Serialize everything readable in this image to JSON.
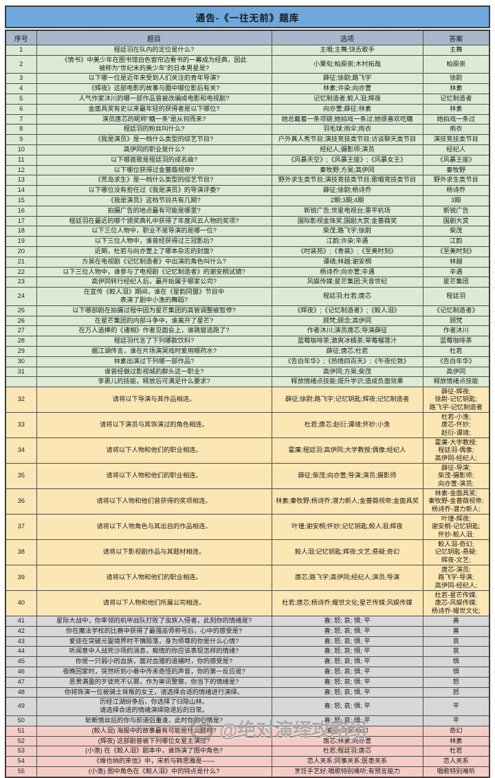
{
  "title": "通告-《一往无前》题库",
  "columns": [
    "序号",
    "题目",
    "选项",
    "答案"
  ],
  "colors": {
    "title_bg": "#6FA8DC",
    "header_bg": "#A9B7CB",
    "section_green": "#DCEBD4",
    "section_yellow": "#FBE6B4",
    "section_gray": "#D8D8D8",
    "section_red": "#F5CDC6"
  },
  "watermark": {
    "handle": "@绝对演绎攻略组",
    "stamp_text": "绝对演绎攻略组"
  },
  "rows": [
    {
      "no": "1",
      "sec": "green",
      "q": "程廷羽在队内的定位是什么?",
      "opts": "主唱;主舞;饶舌歌手",
      "ans": "主舞"
    },
    {
      "no": "2",
      "sec": "green",
      "q": "《情书》中美少年在图书馆白色窗帘边看书的一幕成为经典，因此\n被称为“世纪末的美少年”的日本男星是?",
      "opts": "小栗旬;柏原崇;木村拓哉",
      "ans": "柏原崇"
    },
    {
      "no": "3",
      "sec": "green",
      "q": "以下哪一位是近年来受到人们关注的青年导演?",
      "opts": "薛征;徐尉;路飞宇",
      "ans": "徐尉"
    },
    {
      "no": "4",
      "sec": "green",
      "q": "《辉夜》这部电影的故事与圈中哪位影后有关?",
      "opts": "林素;许染;向亦萱",
      "ans": "林素"
    },
    {
      "no": "5",
      "sec": "green",
      "q": "人气作家沐川的哪一部作品曾被改编成电影和电视剧?",
      "opts": "记忆制造者;鲛人泪;辉夜",
      "ans": "记忆制造者"
    },
    {
      "no": "6",
      "sec": "green",
      "q": "金面具奖有史以来最年轻的获得者是以下哪位?",
      "opts": "向亦萱;薛征;林素",
      "ans": "林素"
    },
    {
      "no": "7",
      "sec": "green",
      "q": "演员唐芯的昵称“糖一条”是从何而来?",
      "opts": "她总戴着一条项链;她拍戏一条过;她很喜欢吃糖",
      "ans": "她拍戏一条过"
    },
    {
      "no": "8",
      "sec": "green",
      "q": "程廷羽的粉丝叫什么?",
      "opts": "羽毛球;雨伞;雨衣",
      "ans": "雨衣"
    },
    {
      "no": "9",
      "sec": "green",
      "q": "《我是演员》是一档什么类型的综艺节目?",
      "opts": "户外真人秀节目;演技竞技类节目;访谈聊天类节目",
      "ans": "演技竞技类节目"
    },
    {
      "no": "10",
      "sec": "green",
      "q": "高伊同的职业是什么?",
      "opts": "经纪人;摄影师;演员",
      "ans": "经纪人"
    },
    {
      "no": "11",
      "sec": "green",
      "q": "以下哪首歌是程廷羽的成名曲?",
      "opts": "《风暴天空》;《风暴王座》;《风暴女王》",
      "ans": "《风暴王座》"
    },
    {
      "no": "12",
      "sec": "green",
      "q": "以下哪位获得过金蔷薇视帝?",
      "opts": "秦牧野;方昊;高伊同",
      "ans": "秦牧野"
    },
    {
      "no": "13",
      "sec": "green",
      "q": "《荒岛求生》是一档什么类型的综艺节目?",
      "opts": "野外求生类节目;演技竞技类节目;歌唱竞技类节目",
      "ans": "野外求生类节目"
    },
    {
      "no": "14",
      "sec": "green",
      "q": "以下哪位没有担任过《我是演员》的导演评委?",
      "opts": "薛征;徐尉;杨诗乔",
      "ans": "杨诗乔"
    },
    {
      "no": "15",
      "sec": "green",
      "q": "《我是演员》这档节目共有几期?",
      "opts": "2期;3期;4期",
      "ans": "3期"
    },
    {
      "no": "16",
      "sec": "green",
      "q": "拍摄广告的地点最有可能是哪里?",
      "opts": "新锐广告;世星电视台;景平机场",
      "ans": "新锐广告"
    },
    {
      "no": "17",
      "sec": "green",
      "q": "程廷羽在最近的哪个颁奖典礼中获得了年度风云人物的奖项?",
      "opts": "国际影视金珠奖;国剧大赏;金蔷薇奖",
      "ans": "国剧大赏"
    },
    {
      "no": "18",
      "sec": "green",
      "q": "以下三位人物中，职业不是导演的是哪一位?",
      "opts": "柴茂;路飞宇;徐尉",
      "ans": "柴茂"
    },
    {
      "no": "19",
      "sec": "green",
      "q": "以下三位人物中，谁曾经获得过三冠影后?",
      "opts": "江韵;许染;辛遇",
      "ans": "江韵"
    },
    {
      "no": "20",
      "sec": "green",
      "q": "近期，杜若与向亦萱上了哪本杂志的封面?",
      "opts": "《时装苑》;《青装》;《至美时刻》",
      "ans": "《至美时刻》"
    },
    {
      "no": "21",
      "sec": "green",
      "q": "方昊在电视剧《记忆制造者》中出演的角色叫什么?",
      "opts": "谭靖;林越;谢安桐",
      "ans": "林越"
    },
    {
      "no": "22",
      "sec": "green",
      "q": "以下三位人物中，谁参与了电视剧《记忆制造者》的谢安桐试镜?",
      "opts": "杨诗乔;向亦萱;辛遇",
      "ans": "辛遇"
    },
    {
      "no": "23",
      "sec": "green",
      "q": "高伊同转行经纪人后，最开始属于哪家公司?",
      "opts": "风娱传媒;星芒集团;天音世纪",
      "ans": "星芒集团"
    },
    {
      "no": "24",
      "sec": "green",
      "q": "在宣传《鲛人泪》期间，谁在《星韵同盟》节目中\n表演了剧中小渔的舞蹈?",
      "opts": "程廷羽;杜若;唐芯",
      "ans": "程廷羽"
    },
    {
      "no": "25",
      "sec": "green",
      "q": "以下哪部剧在拍摄过程中因为星芒集团的高管调整被暂停?",
      "opts": "《辉夜》;《记忆制造者》;《鲛人泪》",
      "ans": "《记忆制造者》"
    },
    {
      "no": "26",
      "sec": "green",
      "q": "在星芒集团的内部斗争中，谁离开了星芒?",
      "opts": "顾梵;顾念;高伊同",
      "ans": "顾梵"
    },
    {
      "no": "27",
      "sec": "green",
      "q": "在万人追捧的《诸相》作者见面会上，谁跳窗逃跑了?",
      "opts": "作者沐川;演员唐芯;导演薛征",
      "ans": "作者沐川"
    },
    {
      "no": "28",
      "sec": "green",
      "q": "程廷羽代言了下列哪款饮料?",
      "opts": "蓝莓咖啡茶;激爽冰橘茶;草莓榴莲汁",
      "ans": "蓝莓咖啡茶"
    },
    {
      "no": "29",
      "sec": "green",
      "q": "据江湖传言，谁在片场演哭戏时爱用眼药水?",
      "opts": "薛征;唐芯;杜若",
      "ans": "杜若"
    },
    {
      "no": "30",
      "sec": "green",
      "q": "林素出演过下列哪一部作品?",
      "opts": "《告白年华》;《热情四百天》;《午夜伦敦》",
      "ans": "《告白年华》"
    },
    {
      "no": "31",
      "sec": "green",
      "q": "谁曾经做过影视城的群头这一职业?",
      "opts": "高伊同;方昊;柴茂",
      "ans": "高伊同"
    },
    {
      "no": "",
      "sec": "green",
      "q": "李裹儿的技能，释放后可满足什么要求?",
      "opts": "释放情绪点技能;提升学识;造成负面效果",
      "ans": "释放情绪点技能"
    },
    {
      "no": "32",
      "sec": "yellow",
      "q": "请将以下导演与其作品相连。",
      "opts": "薛征;徐尉;路飞宇;记忆钥匙;辉夜;记忆制造者",
      "ans": "薛征-辉夜;\n徐尉-记忆钥匙;\n路飞宇-记忆制造者"
    },
    {
      "no": "33",
      "sec": "yellow",
      "q": "请将以下演员与其饰演过的角色相连。",
      "opts": "杜若;唐芯;赵衍;谭靖;怀妙;小渔",
      "ans": "杜若-小渔;\n唐芯-怀妙;\n赵衍-谭靖;"
    },
    {
      "no": "34",
      "sec": "yellow",
      "q": "请将以下人物和他们的职业相连。",
      "opts": "霍廉;程廷羽;高伊同;大学教授;偶像;经纪人",
      "ans": "霍廉-大学教授;\n程廷羽-偶像;\n高伊同-经纪人;"
    },
    {
      "no": "35",
      "sec": "yellow",
      "q": "请将以下人物和他们的职业相连。",
      "opts": "薛征;柴茂;向亦萱;导演;演员;摄影师",
      "ans": "薛征-导演;\n柴茂-摄影师;\n向亦萱-演员;"
    },
    {
      "no": "36",
      "sec": "yellow",
      "q": "请将以下人物和他们曾获得的奖项相连。",
      "opts": "林素;秦牧野;杨诗乔;潜力新人;金蔷薇视帝;金面具奖",
      "ans": "林素-金面具奖;\n秦牧野-金蔷薇视帝;\n杨诗乔-潜力新人;"
    },
    {
      "no": "37",
      "sec": "yellow",
      "q": "请将以下人物角色与其出自的作品相连。",
      "opts": "叶瑾;谢安桐;怀妙;记忆钥匙;鲛人泪;辉夜",
      "ans": "叶瑾-辉夜;\n谢安桐-记忆钥匙;\n怀妙-鲛人泪;"
    },
    {
      "no": "38",
      "sec": "yellow",
      "q": "请将以下影视剧作品与其题材相连。",
      "opts": "鲛人泪;记忆钥匙;辉夜;文艺;悬疑;奇幻",
      "ans": "鲛人泪-奇幻;\n记忆钥匙-悬疑;\n辉夜-文艺;"
    },
    {
      "no": "39",
      "sec": "yellow",
      "q": "请将以下人物和他们的职业相连。",
      "opts": "唐芯;路飞宇;高伊同;经纪人;演员;导演",
      "ans": "唐芯-演员;\n路飞宇-导演;\n高伊同-经纪人;"
    },
    {
      "no": "40",
      "sec": "yellow",
      "q": "请将以下人物和他们所属公司相连。",
      "opts": "杜若;唐芯;杨诗乔;耀世文化;星芒传媒;风娱传媒",
      "ans": "杜若-星芒传媒;\n唐芯-风娱传媒;\n杨诗乔-耀世文化;"
    },
    {
      "no": "41",
      "sec": "gray",
      "q": "星际大战中，你率领的机甲战队打败了虫族入侵者，此刻你的情绪是?",
      "opts": "喜; 怒; 哀; 惧; 平",
      "ans": "喜"
    },
    {
      "no": "42",
      "sec": "gray",
      "q": "你在魔法学校的比赛中获得了最强巫师称号后，心中的感受是?",
      "opts": "喜; 怒; 哀; 惧; 平",
      "ans": "喜"
    },
    {
      "no": "43",
      "sec": "gray",
      "q": "爱徒在突破元婴境界时不慎陨落，身为师尊的你是什么心情?",
      "opts": "喜; 怒; 哀; 惧; 平",
      "ans": "哀"
    },
    {
      "no": "44",
      "sec": "gray",
      "q": "听闻意中人战死沙场的消息，痴情的你应该表现怎样的情绪?",
      "opts": "喜; 怒; 哀; 惧; 平",
      "ans": "哀"
    },
    {
      "no": "45",
      "sec": "gray",
      "q": "你是一只弱小的血族，面对血猎的追捕时，你的感受是?",
      "opts": "喜; 怒; 哀; 惧; 平",
      "ans": "惧"
    },
    {
      "no": "46",
      "sec": "gray",
      "q": "夜晚回家时，突然听到小巷中传来奇怪的声音，你的第一反应是?",
      "opts": "喜; 怒; 哀; 惧; 平",
      "ans": "惧"
    },
    {
      "no": "47",
      "sec": "gray",
      "q": "恶贯满盈的歹徒死不认罪，作为审讯警察，你当下的情绪是?",
      "opts": "喜; 怒; 哀; 惧; 平",
      "ans": "怒"
    },
    {
      "no": "48",
      "sec": "gray",
      "q": "你将饰演一位被骑士背叛的女王，请选择合适的情绪进行演绎。",
      "opts": "喜; 怒; 哀; 惧; 平",
      "ans": "怒"
    },
    {
      "no": "49",
      "sec": "gray",
      "q": "历经江湖纷争后，你选择了归隐山林。\n请选择合适的情绪演绎隐退后的日常。",
      "opts": "喜; 怒; 哀; 惧; 平",
      "ans": "平"
    },
    {
      "no": "50",
      "sec": "gray",
      "q": "斩断情丝后的你与前道侣重逢，此时你的心情是?",
      "opts": "喜; 怒; 哀; 惧; 平",
      "ans": "平"
    },
    {
      "no": "51",
      "sec": "red",
      "q": "(鲛人泪) 海报中的故事最有可能是什么题材?",
      "opts": "爱情;文艺;奇幻",
      "ans": "奇幻"
    },
    {
      "no": "52",
      "sec": "red",
      "q": "(辉夜) 这部剧曾被下列哪位女星主演过?",
      "opts": "唐芯;林素;向亦萱",
      "ans": "林素"
    },
    {
      "no": "53",
      "sec": "red",
      "q": "(小渔) 在《鲛人泪》剧本中，谁饰演了图中角色?",
      "opts": "杜若;程廷羽;唐芯",
      "ans": "杜若"
    },
    {
      "no": "54",
      "sec": "red",
      "q": "《维也纳的来信》中，宋析与韩思雅是——",
      "opts": "恋人关系;同事关系;医患关系",
      "ans": "恋人关系"
    },
    {
      "no": "55",
      "sec": "red",
      "q": "(小渔) 图中角色在《鲛人泪》中的特点是什么?",
      "opts": "烹饪手艺好;唱歌特别难听;有预言能力",
      "ans": "唱歌特别难听"
    }
  ]
}
